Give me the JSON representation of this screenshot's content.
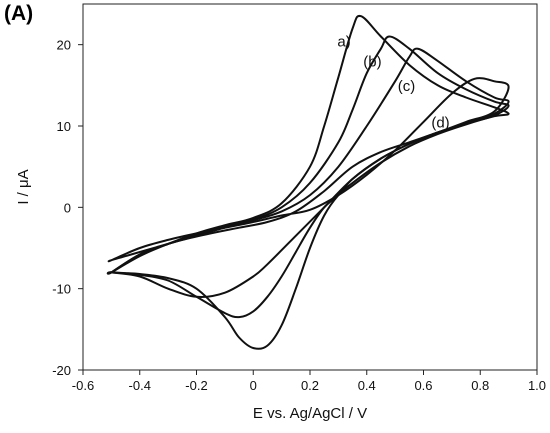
{
  "panel_label": "(A)",
  "chart_data": {
    "type": "line",
    "title": "",
    "xlabel": "E vs. Ag/AgCl / V",
    "ylabel": "I / μA",
    "xlim": [
      -0.6,
      1.0
    ],
    "ylim": [
      -20,
      25
    ],
    "x_ticks": [
      -0.6,
      -0.4,
      -0.2,
      0.0,
      0.2,
      0.4,
      0.6,
      0.8,
      1.0
    ],
    "x_tick_labels": [
      "-0.6",
      "-0.4",
      "-0.2",
      "0",
      "0.2",
      "0.4",
      "0.6",
      "0.8",
      "1.0"
    ],
    "y_ticks": [
      -20,
      -10,
      0,
      10,
      20
    ],
    "y_tick_labels": [
      "-20",
      "-10",
      "0",
      "10",
      "20"
    ],
    "grid": false,
    "legend": "none",
    "line_color": "#111111",
    "series": [
      {
        "name": "a)",
        "x": [
          -0.5,
          -0.4,
          -0.3,
          -0.2,
          -0.1,
          0.0,
          0.1,
          0.2,
          0.25,
          0.3,
          0.35,
          0.38,
          0.45,
          0.55,
          0.65,
          0.75,
          0.85,
          0.9,
          0.85,
          0.75,
          0.65,
          0.55,
          0.45,
          0.35,
          0.3,
          0.25,
          0.2,
          0.15,
          0.1,
          0.05,
          0.0,
          -0.05,
          -0.1,
          -0.2,
          -0.3,
          -0.4,
          -0.5
        ],
        "y": [
          -8.0,
          -6.0,
          -4.5,
          -3.2,
          -2.2,
          -1.3,
          0.5,
          5.0,
          10.0,
          16.0,
          22.0,
          23.5,
          21.0,
          17.5,
          15.0,
          13.5,
          12.3,
          11.5,
          11.2,
          10.2,
          9.0,
          7.5,
          5.5,
          3.0,
          1.5,
          -1.0,
          -5.0,
          -10.0,
          -14.5,
          -17.0,
          -17.3,
          -16.0,
          -13.5,
          -10.0,
          -8.7,
          -8.2,
          -8.0
        ]
      },
      {
        "name": "(b)",
        "x": [
          -0.5,
          -0.4,
          -0.3,
          -0.2,
          -0.1,
          0.0,
          0.1,
          0.2,
          0.3,
          0.35,
          0.4,
          0.45,
          0.48,
          0.55,
          0.65,
          0.75,
          0.85,
          0.9,
          0.85,
          0.75,
          0.65,
          0.55,
          0.45,
          0.35,
          0.3,
          0.25,
          0.2,
          0.15,
          0.1,
          0.05,
          0.0,
          -0.05,
          -0.1,
          -0.2,
          -0.3,
          -0.4,
          -0.5
        ],
        "y": [
          -8.0,
          -5.8,
          -4.5,
          -3.3,
          -2.3,
          -1.5,
          0.0,
          3.0,
          8.0,
          12.0,
          16.5,
          19.5,
          21.0,
          19.5,
          16.5,
          14.5,
          13.0,
          12.5,
          11.3,
          10.3,
          9.2,
          7.8,
          6.0,
          3.5,
          1.5,
          0.0,
          -2.5,
          -5.5,
          -8.5,
          -11.0,
          -12.8,
          -13.5,
          -13.0,
          -11.0,
          -9.0,
          -8.3,
          -8.0
        ]
      },
      {
        "name": "(c)",
        "x": [
          -0.5,
          -0.4,
          -0.3,
          -0.2,
          -0.1,
          0.0,
          0.1,
          0.2,
          0.3,
          0.4,
          0.5,
          0.55,
          0.58,
          0.65,
          0.75,
          0.85,
          0.9,
          0.85,
          0.75,
          0.65,
          0.55,
          0.45,
          0.35,
          0.25,
          0.15,
          0.05,
          0.0,
          -0.1,
          -0.2,
          -0.3,
          -0.4,
          -0.5
        ],
        "y": [
          -8.0,
          -5.8,
          -4.5,
          -3.5,
          -2.5,
          -1.6,
          -0.5,
          1.5,
          5.0,
          10.0,
          15.5,
          18.5,
          19.5,
          18.0,
          15.5,
          13.5,
          13.0,
          11.5,
          10.3,
          9.2,
          7.8,
          6.0,
          3.5,
          0.0,
          -3.5,
          -7.0,
          -8.5,
          -10.5,
          -11.0,
          -10.0,
          -8.5,
          -8.0
        ]
      },
      {
        "name": "(d)",
        "x": [
          -0.5,
          -0.4,
          -0.3,
          -0.2,
          -0.1,
          0.0,
          0.1,
          0.2,
          0.3,
          0.4,
          0.5,
          0.6,
          0.7,
          0.78,
          0.85,
          0.9,
          0.85,
          0.75,
          0.65,
          0.55,
          0.45,
          0.35,
          0.25,
          0.15,
          0.05,
          -0.05,
          -0.15,
          -0.25,
          -0.35,
          -0.45,
          -0.5
        ],
        "y": [
          -6.5,
          -5.0,
          -4.0,
          -3.2,
          -2.5,
          -1.8,
          -1.0,
          -0.3,
          1.5,
          4.0,
          7.0,
          10.5,
          14.0,
          15.8,
          15.5,
          14.8,
          11.8,
          10.5,
          9.2,
          8.0,
          6.8,
          5.0,
          2.0,
          -0.5,
          -1.8,
          -2.5,
          -3.2,
          -4.0,
          -5.0,
          -6.0,
          -6.5
        ]
      }
    ],
    "annotations": [
      {
        "text": "a)",
        "x": 0.32,
        "y": 19.8
      },
      {
        "text": "(b)",
        "x": 0.42,
        "y": 17.3
      },
      {
        "text": "(c)",
        "x": 0.54,
        "y": 14.3
      },
      {
        "text": "(d)",
        "x": 0.66,
        "y": 9.8
      }
    ]
  }
}
